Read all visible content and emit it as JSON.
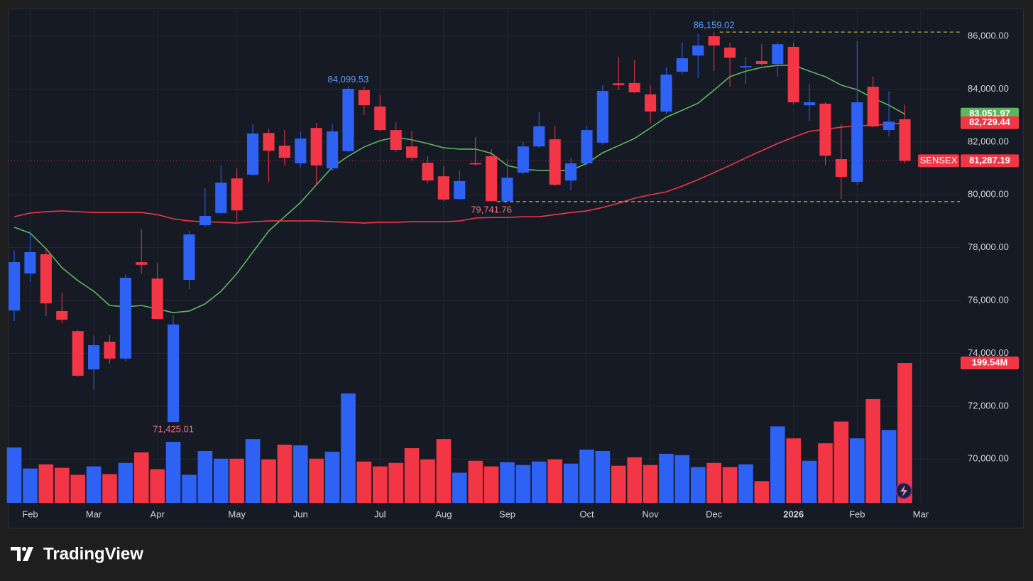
{
  "chart_data": {
    "type": "candlestick",
    "symbol": "SENSEX",
    "brand": "TradingView",
    "colors": {
      "up": "#2e62f5",
      "down": "#f23645",
      "high_label": "#5b9cf6",
      "low_label": "#f7707a",
      "dashed": "#e6d84a"
    },
    "grid": true,
    "xlim": [
      -0.36,
      59.46
    ],
    "xticks": [
      {
        "value": 1,
        "label": "Feb"
      },
      {
        "value": 5,
        "label": "Mar"
      },
      {
        "value": 9,
        "label": "Apr"
      },
      {
        "value": 14,
        "label": "May"
      },
      {
        "value": 18,
        "label": "Jun"
      },
      {
        "value": 23,
        "label": "Jul"
      },
      {
        "value": 27,
        "label": "Aug"
      },
      {
        "value": 31,
        "label": "Sep"
      },
      {
        "value": 36,
        "label": "Oct"
      },
      {
        "value": 40,
        "label": "Nov"
      },
      {
        "value": 44,
        "label": "Dec"
      },
      {
        "value": 49,
        "label": "2026"
      },
      {
        "value": 53,
        "label": "Feb"
      },
      {
        "value": 57,
        "label": "Mar"
      }
    ],
    "ylim": [
      68340,
      87050
    ],
    "yticks": [
      {
        "value": 70000,
        "label": "70,000.00"
      },
      {
        "value": 72000,
        "label": "72,000.00"
      },
      {
        "value": 74000,
        "label": "74,000.00"
      },
      {
        "value": 76000,
        "label": "76,000.00"
      },
      {
        "value": 78000,
        "label": "78,000.00"
      },
      {
        "value": 80000,
        "label": "80,000.00"
      },
      {
        "value": 82000,
        "label": "82,000.00"
      },
      {
        "value": 84000,
        "label": "84,000.00"
      },
      {
        "value": 86000,
        "label": "86,000.00"
      }
    ],
    "candles": {
      "open": [
        75620,
        77020,
        77750,
        75600,
        74840,
        73390,
        74440,
        73800,
        77450,
        76830,
        71400,
        76780,
        78850,
        79310,
        80620,
        80760,
        82340,
        81860,
        81190,
        82530,
        81000,
        81650,
        83960,
        83340,
        82450,
        81830,
        81210,
        80700,
        79840,
        81200,
        81460,
        79760,
        80840,
        81830,
        82100,
        80540,
        81190,
        81970,
        84220,
        84230,
        83800,
        83150,
        84660,
        85270,
        86000,
        85570,
        84820,
        85060,
        84950,
        85600,
        83390,
        83450,
        81350,
        80490,
        84090,
        82450,
        82860
      ],
      "high": [
        77900,
        78640,
        77910,
        76300,
        74900,
        74680,
        74680,
        76990,
        78690,
        77420,
        75440,
        78630,
        80250,
        81110,
        81000,
        82670,
        82480,
        82450,
        82400,
        82720,
        82670,
        84099.53,
        84090,
        83800,
        82750,
        82400,
        81460,
        81080,
        80920,
        82180,
        81730,
        81350,
        82000,
        83120,
        82610,
        81400,
        82610,
        84150,
        85220,
        85090,
        84150,
        84820,
        85760,
        86100,
        86159.02,
        85760,
        85220,
        85700,
        85760,
        85760,
        84200,
        83500,
        82670,
        85810,
        84470,
        83930,
        83420
      ],
      "low": [
        75220,
        76700,
        75410,
        75140,
        73120,
        72640,
        73610,
        73700,
        77020,
        75270,
        71425.01,
        76430,
        78770,
        79250,
        78980,
        80700,
        80460,
        81110,
        81030,
        80330,
        80900,
        81600,
        83020,
        82400,
        81620,
        81300,
        80440,
        79760,
        79800,
        81100,
        79741.76,
        79750,
        80780,
        81780,
        80330,
        80170,
        81130,
        81900,
        83960,
        83850,
        82720,
        83050,
        84560,
        84410,
        84680,
        84090,
        84200,
        84900,
        84470,
        83420,
        82800,
        81130,
        79840,
        80380,
        82550,
        82210,
        81190
      ],
      "close": [
        77450,
        77830,
        75890,
        75270,
        73150,
        74310,
        73800,
        76860,
        77350,
        75300,
        75090,
        78500,
        79200,
        80460,
        79410,
        82320,
        81670,
        81400,
        82130,
        81110,
        82400,
        84010,
        83390,
        82450,
        81700,
        81400,
        80540,
        79820,
        80520,
        81150,
        79760,
        80650,
        81830,
        82590,
        80380,
        81190,
        82450,
        83930,
        84150,
        83880,
        83150,
        84550,
        85170,
        85650,
        85650,
        85190,
        84870,
        84950,
        85700,
        83500,
        83500,
        81480,
        80680,
        83500,
        82590,
        82770,
        81287.19
      ],
      "high_value_labels": [
        null,
        null,
        null,
        null,
        null,
        null,
        null,
        null,
        null,
        null,
        null,
        null,
        null,
        null,
        null,
        null,
        null,
        null,
        null,
        null,
        null,
        "84,099.53",
        null,
        null,
        null,
        null,
        null,
        null,
        null,
        null,
        null,
        null,
        null,
        null,
        null,
        null,
        null,
        null,
        null,
        null,
        null,
        null,
        null,
        null,
        "86,159.02",
        null,
        null,
        null,
        null,
        null,
        null,
        null,
        null,
        null,
        null,
        null,
        null
      ],
      "low_value_labels": [
        null,
        null,
        null,
        null,
        null,
        null,
        null,
        null,
        null,
        null,
        "71,425.01",
        null,
        null,
        null,
        null,
        null,
        null,
        null,
        null,
        null,
        null,
        null,
        null,
        null,
        null,
        null,
        null,
        null,
        null,
        null,
        "79,741.76",
        null,
        null,
        null,
        null,
        null,
        null,
        null,
        null,
        null,
        null,
        null,
        null,
        null,
        null,
        null,
        null,
        null,
        null,
        null,
        null,
        null,
        null,
        null,
        null,
        null,
        null
      ],
      "last_label": "81,287.19"
    },
    "dashed_lines": [
      {
        "series": "high",
        "index": 44
      },
      {
        "series": "low",
        "index": 30
      }
    ],
    "moving_averages": [
      {
        "color": "#5cb85c",
        "last_label": "83,051.97",
        "values": [
          78770,
          78550,
          77960,
          77240,
          76750,
          76350,
          75810,
          75760,
          75810,
          75680,
          75540,
          75600,
          75870,
          76350,
          77020,
          77830,
          78630,
          79170,
          79710,
          80380,
          81050,
          81460,
          81810,
          82050,
          82180,
          82080,
          81940,
          81780,
          81730,
          81730,
          81570,
          81110,
          80970,
          80920,
          80920,
          80920,
          81190,
          81590,
          81860,
          82130,
          82530,
          82940,
          83200,
          83470,
          83960,
          84470,
          84680,
          84820,
          84900,
          84900,
          84680,
          84470,
          84150,
          83980,
          83660,
          83390,
          83051.97
        ]
      },
      {
        "color": "#f23645",
        "last_label": "82,729.44",
        "values": [
          79170,
          79310,
          79360,
          79390,
          79360,
          79330,
          79330,
          79330,
          79330,
          79250,
          79090,
          79010,
          78980,
          78960,
          78930,
          78980,
          79010,
          79010,
          79010,
          79010,
          78980,
          78960,
          78930,
          78960,
          78960,
          78980,
          78980,
          78980,
          79010,
          79120,
          79140,
          79140,
          79170,
          79170,
          79250,
          79330,
          79390,
          79520,
          79680,
          79870,
          80000,
          80110,
          80330,
          80570,
          80840,
          81110,
          81400,
          81670,
          81940,
          82180,
          82400,
          82480,
          82560,
          82610,
          82640,
          82670,
          82729.44
        ]
      }
    ],
    "volume": {
      "ylim": [
        0,
        705
      ],
      "values": [
        79,
        49,
        55,
        50,
        40,
        52,
        41,
        57,
        72,
        48,
        87,
        40,
        74,
        63,
        63,
        91,
        62,
        83,
        82,
        63,
        73,
        156,
        59,
        52,
        57,
        78,
        62,
        91,
        43,
        60,
        52,
        58,
        54,
        59,
        62,
        56,
        76,
        74,
        53,
        65,
        54,
        70,
        68,
        51,
        57,
        51,
        55,
        31,
        109,
        92,
        60,
        85,
        116,
        92,
        148,
        104,
        199.54
      ],
      "last_label": "199.54M"
    }
  }
}
